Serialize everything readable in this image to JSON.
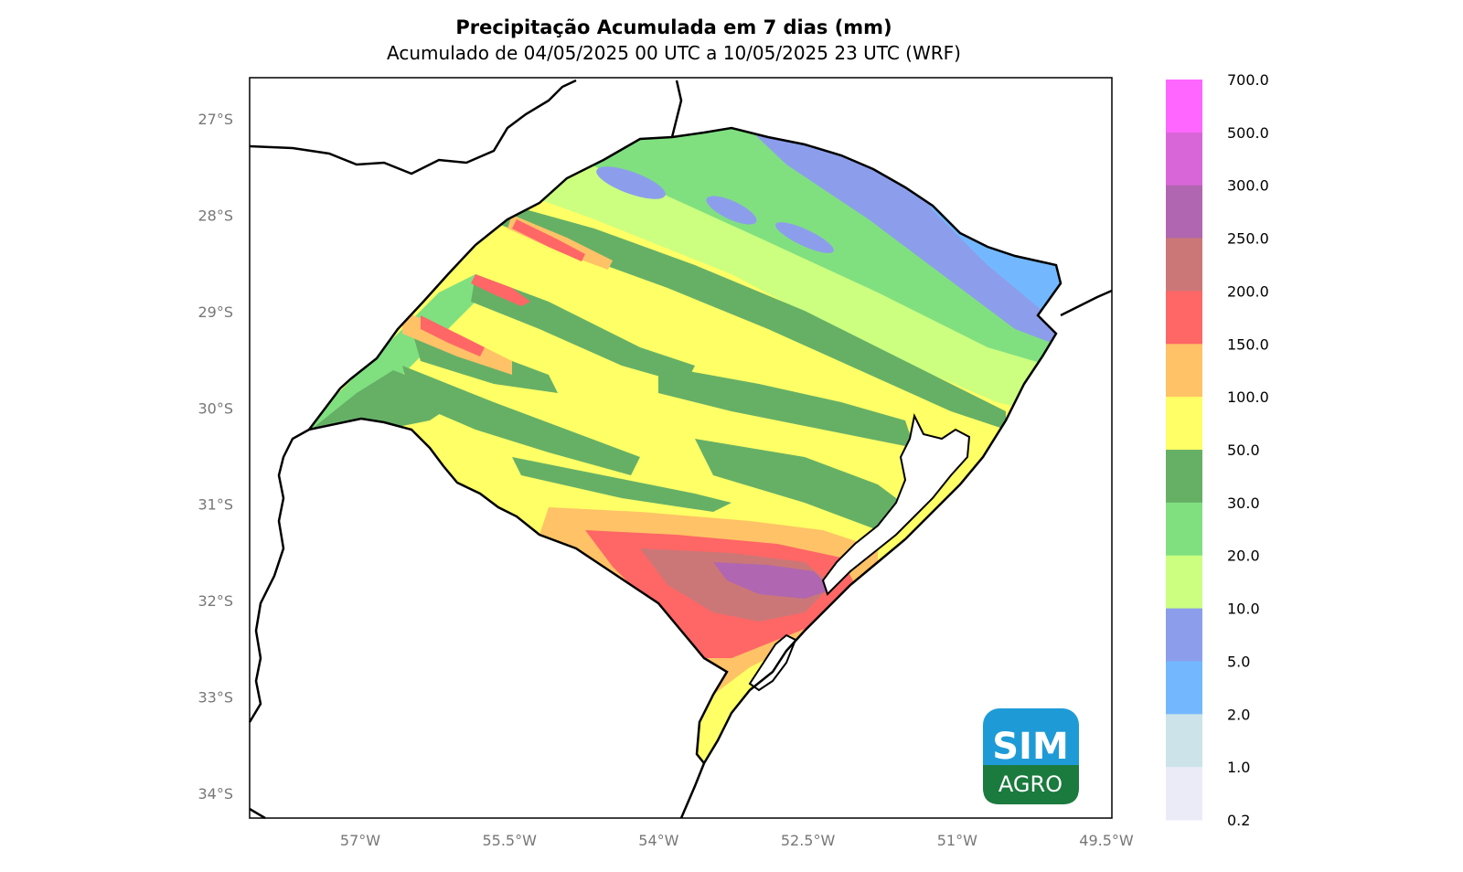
{
  "title": "Precipitação Acumulada em 7 dias (mm)",
  "subtitle": "Acumulado de 04/05/2025 00 UTC a 10/05/2025 23 UTC (WRF)",
  "lat_ticks": [
    "27°S",
    "28°S",
    "29°S",
    "30°S",
    "31°S",
    "32°S",
    "33°S",
    "34°S"
  ],
  "lon_ticks": [
    "57°W",
    "55.5°W",
    "54°W",
    "52.5°W",
    "51°W",
    "49.5°W"
  ],
  "colorbar": {
    "labels": [
      "700.0",
      "500.0",
      "300.0",
      "250.0",
      "200.0",
      "150.0",
      "100.0",
      "50.0",
      "30.0",
      "20.0",
      "10.0",
      "5.0",
      "2.0",
      "1.0",
      "0.2"
    ],
    "colors": [
      "#ff66ff",
      "#d966d9",
      "#b066b0",
      "#cc7777",
      "#ff6666",
      "#ffc266",
      "#ffff66",
      "#66b066",
      "#80e080",
      "#ccff80",
      "#8c9eeb",
      "#73b8ff",
      "#cce3ea",
      "#ebebf8"
    ]
  },
  "colors": {
    "dry_blue": "#8c9eeb",
    "light_blue": "#73b8ff",
    "yellow_green": "#ccff80",
    "light_green": "#80e080",
    "dark_green": "#66b066",
    "yellow": "#ffff66",
    "orange": "#ffc266",
    "red": "#ff6666",
    "brown_red": "#cc7777",
    "purple": "#b066b0",
    "logo_blue": "#1e9bd7",
    "logo_green": "#1b7a3e"
  },
  "logo": {
    "line1": "SIM",
    "line2": "AGRO"
  }
}
